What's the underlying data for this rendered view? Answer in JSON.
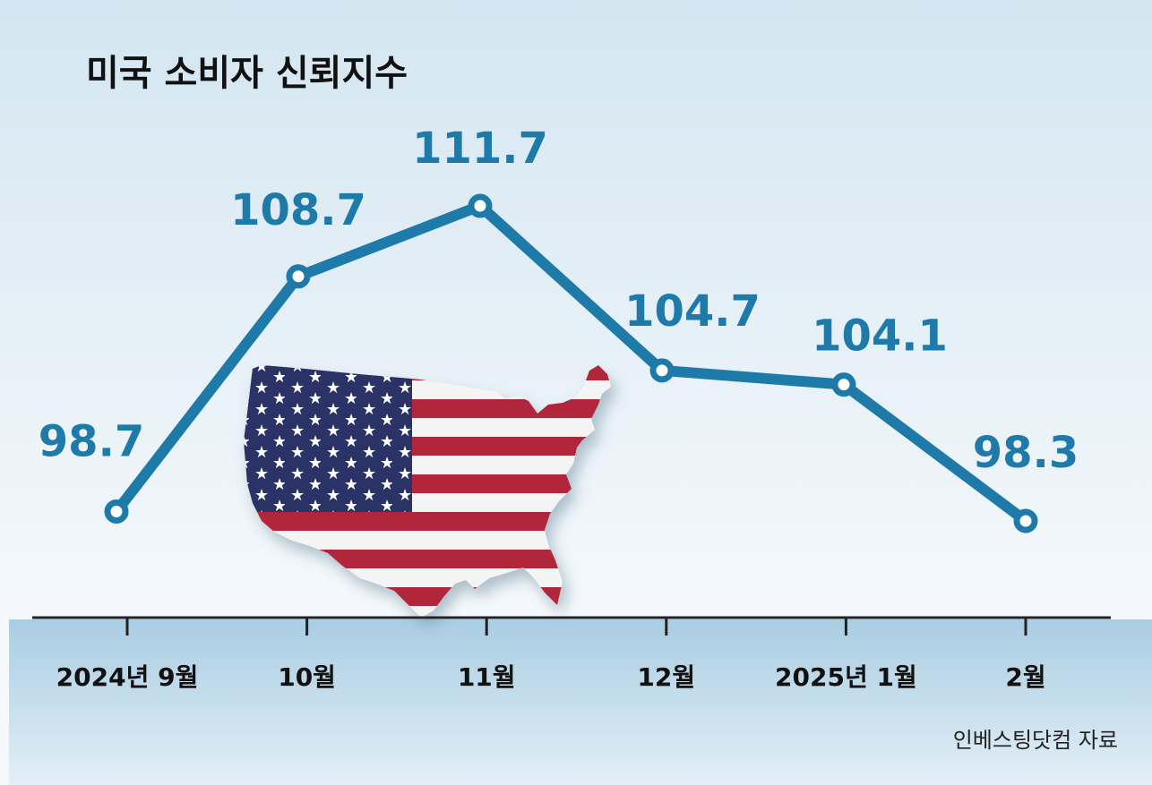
{
  "chart_data": {
    "type": "line",
    "title": "미국 소비자 신뢰지수",
    "categories": [
      "2024년 9월",
      "10월",
      "11월",
      "12월",
      "2025년 1월",
      "2월"
    ],
    "values": [
      98.7,
      108.7,
      111.7,
      104.7,
      104.1,
      98.3
    ],
    "value_labels": [
      "98.7",
      "108.7",
      "111.7",
      "104.7",
      "104.1",
      "98.3"
    ],
    "ylim": [
      96,
      114
    ],
    "grid": false,
    "legend": "none",
    "source": "인베스팅닷컴 자료",
    "colors": {
      "line": "#1e7aa8",
      "value_label": "#1e7aa8",
      "bg_top": "#d4e6f1",
      "bg_mid": "#f5f9fc",
      "band_top": "#a9cde2",
      "band_bottom": "#e3eff7",
      "axis": "#222222",
      "flag_red": "#b1263a",
      "flag_blue": "#2b3366",
      "flag_white": "#f4f4f4"
    },
    "illustration": "usa-flag-map"
  }
}
